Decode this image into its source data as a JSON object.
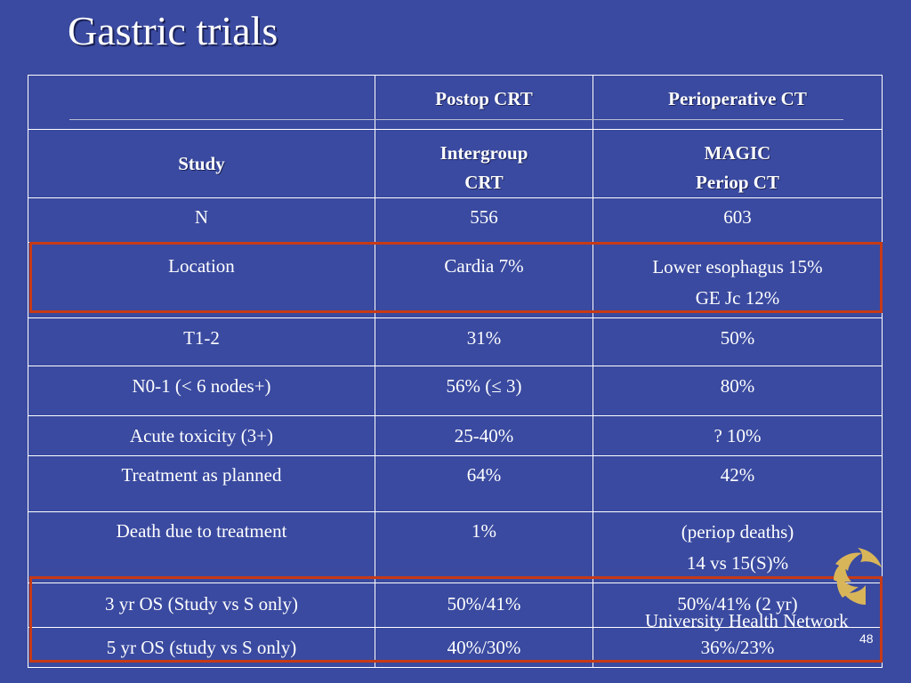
{
  "title": "Gastric trials",
  "table": {
    "header": [
      "",
      "Postop CRT",
      "Perioperative CT"
    ],
    "study_row": {
      "label": "Study",
      "col2": [
        "Intergroup",
        "CRT"
      ],
      "col3": [
        "MAGIC",
        "Periop CT"
      ]
    },
    "rows": [
      {
        "label": "N",
        "col2": [
          "556"
        ],
        "col3": [
          "603"
        ]
      },
      {
        "label": "Location",
        "col2": [
          "Cardia 7%"
        ],
        "col3": [
          "Lower esophagus 15%",
          "GE Jc 12%"
        ]
      },
      {
        "label": "T1-2",
        "col2": [
          "31%"
        ],
        "col3": [
          "50%"
        ]
      },
      {
        "label": "N0-1 (< 6 nodes+)",
        "col2": [
          "56% (≤ 3)"
        ],
        "col3": [
          "80%"
        ]
      },
      {
        "label": "Acute toxicity (3+)",
        "col2": [
          "25-40%"
        ],
        "col3": [
          "? 10%"
        ]
      },
      {
        "label": "Treatment as planned",
        "col2": [
          "64%"
        ],
        "col3": [
          "42%"
        ]
      },
      {
        "label": "Death due to treatment",
        "col2": [
          "1%"
        ],
        "col3": [
          "(periop deaths)",
          "14 vs 15(S)%"
        ]
      },
      {
        "label": "3 yr OS (Study vs S only)",
        "col2": [
          "50%/41%"
        ],
        "col3": [
          "50%/41% (2 yr)"
        ]
      },
      {
        "label": "5 yr OS (study vs S only)",
        "col2": [
          "40%/30%"
        ],
        "col3": [
          "36%/23%"
        ]
      }
    ]
  },
  "footer": {
    "organization": "University Health Network",
    "page_number": "48"
  },
  "colors": {
    "background": "#3a4aa0",
    "highlight": "#c73a16",
    "logo": "#d9b55a"
  },
  "icons": {
    "logo": "uhn-logo-icon"
  }
}
